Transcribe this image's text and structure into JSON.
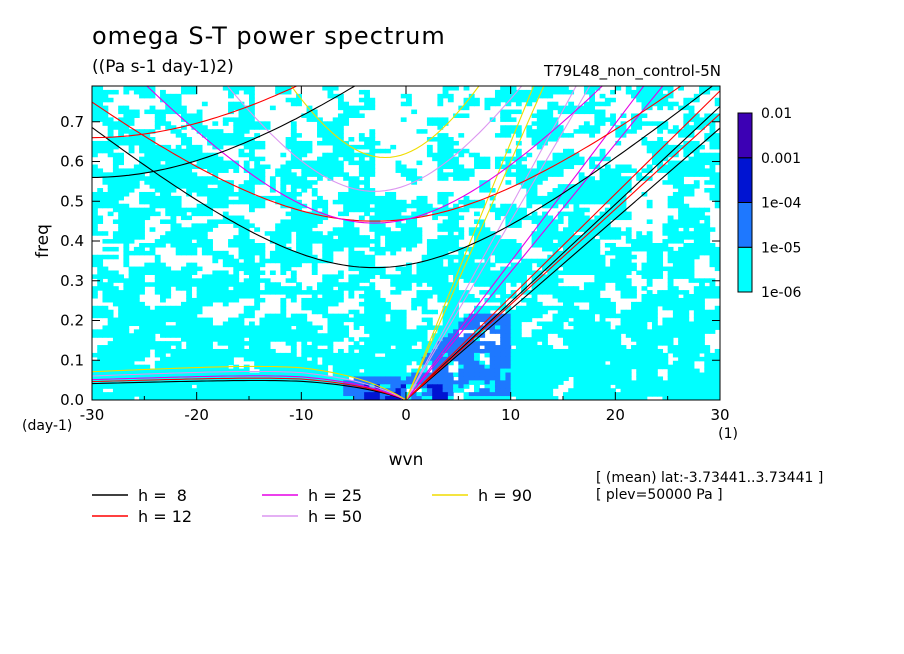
{
  "header": {
    "title": "omega S-T power spectrum",
    "units": "((Pa s-1 day-1)2)",
    "run_name": "T79L48_non_control-5N"
  },
  "info": {
    "line1": "[ (mean) lat:-3.73441..3.73441 ]",
    "line2": "[ plev=50000 Pa ]"
  },
  "chart_data": {
    "type": "heatmap",
    "title": "omega S-T power spectrum",
    "xlabel": "wvn",
    "ylabel": "freq",
    "x_unit_label": "(1)",
    "y_unit_label": "(day-1)",
    "xlim": [
      -30,
      30
    ],
    "ylim": [
      0,
      0.79
    ],
    "x_ticks": [
      -30,
      -20,
      -10,
      0,
      10,
      20,
      30
    ],
    "x_tick_labels": [
      "-30",
      "-20",
      "-10",
      "0",
      "10",
      "20",
      "30"
    ],
    "y_ticks": [
      0,
      0.1,
      0.2,
      0.3,
      0.4,
      0.5,
      0.6,
      0.7
    ],
    "y_tick_labels": [
      "0.0",
      "0.1",
      "0.2",
      "0.3",
      "0.4",
      "0.5",
      "0.6",
      "0.7"
    ],
    "colorbar": {
      "levels": [
        "1e-06",
        "1e-05",
        "1e-04",
        "0.001",
        "0.01"
      ],
      "colors": [
        "#00ffff",
        "#1e78ff",
        "#0014d2",
        "#3c00b4"
      ]
    },
    "legend": [
      {
        "label": "h =  8",
        "color": "#000000"
      },
      {
        "label": "h = 12",
        "color": "#ff0000"
      },
      {
        "label": "h = 25",
        "color": "#e600e6"
      },
      {
        "label": "h = 50",
        "color": "#dc96f0"
      },
      {
        "label": "h = 90",
        "color": "#f0dc00"
      }
    ],
    "dispersion_curves": [
      {
        "h": 8,
        "color": "#000000",
        "mrg_low": 0.058,
        "kelvin_slope": 0.0228,
        "er_peak": 0.058
      },
      {
        "h": 12,
        "color": "#ff0000",
        "mrg_low": 0.063,
        "kelvin_slope": 0.024,
        "er_peak": 0.065
      },
      {
        "h": 25,
        "color": "#e600e6",
        "mrg_low": 0.072,
        "kelvin_slope": 0.0322,
        "er_peak": 0.072
      },
      {
        "h": 50,
        "color": "#dc96f0",
        "mrg_low": 0.08,
        "kelvin_slope": 0.045,
        "er_peak": 0.085
      },
      {
        "h": 90,
        "color": "#f0dc00",
        "mrg_low": 0.09,
        "kelvin_slope": 0.06,
        "er_peak": 0.1
      }
    ],
    "ig_curves": [
      {
        "color": "#000000",
        "f0": 0.333,
        "kmin": -3,
        "c": 0.0222
      },
      {
        "color": "#ff0000",
        "f0": 0.45,
        "kmin": -3,
        "c": 0.0222
      },
      {
        "color": "#e600e6",
        "f0": 0.445,
        "kmin": -3,
        "c": 0.03
      },
      {
        "color": "#dc96f0",
        "f0": 0.525,
        "kmin": -3,
        "c": 0.042
      },
      {
        "color": "#f0dc00",
        "f0": 0.61,
        "kmin": -2,
        "c": 0.056
      },
      {
        "color": "#000000",
        "f0": 0.56,
        "kmin": -30,
        "c": 0.0222,
        "left_only": true
      },
      {
        "color": "#ff0000",
        "f0": 0.66,
        "kmin": -30,
        "c": 0.0222,
        "left_only": true
      }
    ],
    "grid": false,
    "legend_position": "bottom-left"
  }
}
